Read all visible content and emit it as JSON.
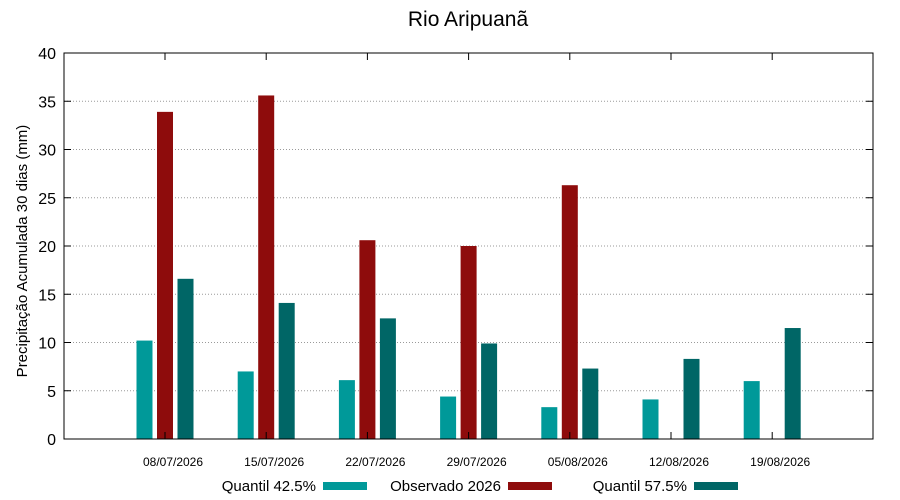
{
  "chart_data": {
    "type": "bar",
    "title": "Rio Aripuanã",
    "xlabel": "",
    "ylabel": "Precipitação Acumulada 30 dias (mm)",
    "ylim": [
      0,
      40
    ],
    "yticks": [
      0,
      5,
      10,
      15,
      20,
      25,
      30,
      35,
      40
    ],
    "grid": true,
    "legend_position": "bottom",
    "categories": [
      "08/07/2026",
      "15/07/2026",
      "22/07/2026",
      "29/07/2026",
      "05/08/2026",
      "12/08/2026",
      "19/08/2026"
    ],
    "series": [
      {
        "name": "Quantil 42.5%",
        "color": "#009999",
        "values": [
          10.2,
          7.0,
          6.1,
          4.4,
          3.3,
          4.1,
          6.0
        ]
      },
      {
        "name": "Observado 2026",
        "color": "#8e0c0c",
        "values": [
          33.9,
          35.6,
          20.6,
          20.0,
          26.3,
          null,
          null
        ]
      },
      {
        "name": "Quantil 57.5%",
        "color": "#006666",
        "values": [
          16.6,
          14.1,
          12.5,
          9.9,
          7.3,
          8.3,
          11.5
        ]
      }
    ]
  }
}
